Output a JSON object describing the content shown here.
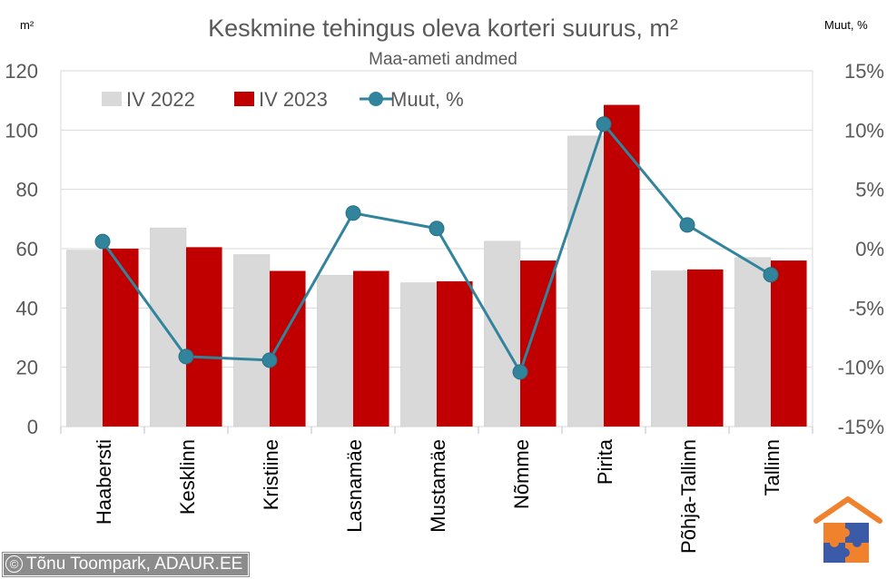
{
  "chart_data": {
    "type": "bar",
    "title": "Keskmine tehingus oleva korteri suurus, m²",
    "subtitle": "Maa-ameti andmed",
    "ylabel": "m²",
    "y2label": "Muut, %",
    "ylim": [
      0,
      120
    ],
    "yticks": [
      0,
      20,
      40,
      60,
      80,
      100,
      120
    ],
    "y2lim": [
      -15,
      15
    ],
    "y2ticks": [
      "-15%",
      "-10%",
      "-5%",
      "0%",
      "5%",
      "10%",
      "15%"
    ],
    "grid": true,
    "legend_position": "top-left",
    "categories": [
      "Haabersti",
      "Kesklinn",
      "Kristiine",
      "Lasnamäe",
      "Mustamäe",
      "Nõmme",
      "Pirita",
      "Põhja-Tallinn",
      "Tallinn"
    ],
    "series": [
      {
        "name": "IV 2022",
        "type": "bar",
        "axis": "left",
        "color": "#d9d9d9",
        "values": [
          59.5,
          67.0,
          58.0,
          51.0,
          48.5,
          62.5,
          98.0,
          52.5,
          57.0
        ]
      },
      {
        "name": "IV 2023",
        "type": "bar",
        "axis": "left",
        "color": "#c00000",
        "values": [
          60.0,
          60.5,
          52.5,
          52.5,
          49.0,
          56.0,
          108.5,
          53.0,
          56.0
        ]
      },
      {
        "name": "Muut, %",
        "type": "line",
        "axis": "right",
        "color": "#31849b",
        "values": [
          0.6,
          -9.1,
          -9.4,
          3.0,
          1.7,
          -10.4,
          10.5,
          2.0,
          -2.2
        ]
      }
    ]
  },
  "credit": {
    "symbol": "©",
    "text": "Tõnu Toompark, ADAUR.EE"
  },
  "logo": {
    "name": "house-puzzle-logo"
  }
}
